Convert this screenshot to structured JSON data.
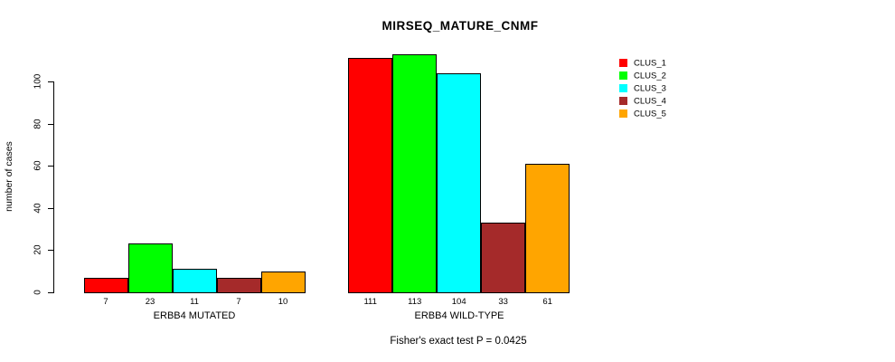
{
  "chart_data": {
    "type": "bar",
    "title": "MIRSEQ_MATURE_CNMF",
    "ylabel": "number of cases",
    "xlabel": "",
    "caption": "Fisher's exact test P = 0.0425",
    "groups": [
      "ERBB4 MUTATED",
      "ERBB4 WILD-TYPE"
    ],
    "yticks": [
      0,
      20,
      40,
      60,
      80,
      100
    ],
    "ylim": [
      0,
      117
    ],
    "grid": false,
    "legend_position": "right",
    "bar_value_labels_shown": true,
    "series": [
      {
        "name": "CLUS_1",
        "color": "#FF0000",
        "values": [
          7,
          111
        ]
      },
      {
        "name": "CLUS_2",
        "color": "#00FF00",
        "values": [
          23,
          113
        ]
      },
      {
        "name": "CLUS_3",
        "color": "#00FFFF",
        "values": [
          11,
          104
        ]
      },
      {
        "name": "CLUS_4",
        "color": "#A52A2A",
        "values": [
          7,
          33
        ]
      },
      {
        "name": "CLUS_5",
        "color": "#FFA500",
        "values": [
          10,
          61
        ]
      }
    ]
  }
}
